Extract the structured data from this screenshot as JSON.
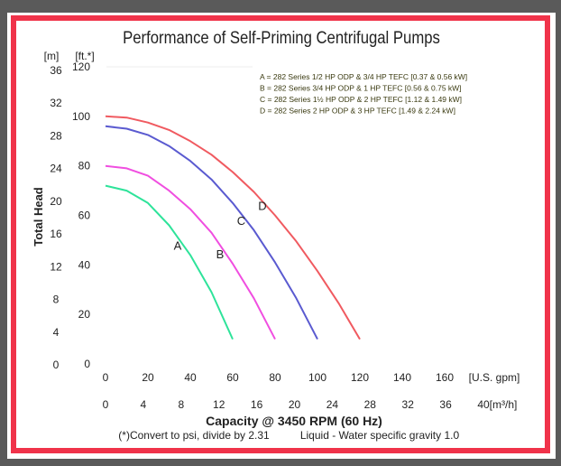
{
  "chart_data": {
    "type": "line",
    "title": "Performance of Self-Priming Centrifugal Pumps",
    "xlabel": "Capacity @ 3450 RPM (60 Hz)",
    "ylabel": "Total Head",
    "x_unit_primary": "[U.S. gpm]",
    "x_unit_secondary": "[m³/h]",
    "y_unit_primary": "[ft.*]",
    "y_unit_secondary": "[m]",
    "xlim": [
      0,
      160
    ],
    "ylim": [
      0,
      120
    ],
    "x_ticks": [
      0,
      20,
      40,
      60,
      80,
      100,
      120,
      140,
      160
    ],
    "x_ticks_secondary": [
      0,
      4,
      8,
      12,
      16,
      20,
      24,
      28,
      32,
      36,
      40
    ],
    "y_ticks": [
      0,
      20,
      40,
      60,
      80,
      100,
      120
    ],
    "y_ticks_secondary": [
      0,
      4,
      8,
      12,
      16,
      20,
      24,
      28,
      32,
      36
    ],
    "grid": false,
    "legend_placement": "top-right",
    "legend": [
      "A = 282 Series 1/2 HP ODP & 3/4 HP TEFC [0.37 & 0.56 kW]",
      "B = 282 Series 3/4 HP ODP & 1 HP TEFC [0.56 & 0.75 kW]",
      "C = 282 Series 1½ HP ODP & 2 HP TEFC [1.12 & 1.49 kW]",
      "D = 282 Series 2 HP ODP & 3 HP TEFC [1.49 & 2.24 kW]"
    ],
    "series": [
      {
        "name": "A",
        "color": "#2ee39a",
        "x": [
          0,
          10,
          20,
          30,
          40,
          50,
          60
        ],
        "y": [
          72,
          70,
          65,
          56,
          44,
          29,
          10
        ]
      },
      {
        "name": "B",
        "color": "#f04ee0",
        "x": [
          0,
          10,
          20,
          30,
          40,
          50,
          60,
          70,
          80
        ],
        "y": [
          80,
          79,
          76,
          70,
          62.5,
          53,
          40.5,
          26.5,
          10
        ]
      },
      {
        "name": "C",
        "color": "#5a5ad0",
        "x": [
          0,
          10,
          20,
          30,
          40,
          50,
          60,
          70,
          80,
          90,
          100
        ],
        "y": [
          96,
          95,
          92.5,
          88,
          82,
          74.5,
          65,
          54,
          41,
          26.5,
          10
        ]
      },
      {
        "name": "D",
        "color": "#f05a60",
        "x": [
          0,
          10,
          20,
          30,
          40,
          50,
          60,
          70,
          80,
          90,
          100,
          110,
          120
        ],
        "y": [
          100,
          99.5,
          97.5,
          94.5,
          90,
          84.5,
          77.5,
          69.5,
          60,
          49.5,
          37.5,
          24.5,
          10
        ]
      }
    ],
    "notes": [
      "(*)Convert to psi, divide by 2.31",
      "Liquid - Water specific gravity 1.0"
    ]
  },
  "colors": {
    "border": "#f0334a",
    "legend_text": "#3a3a10"
  }
}
